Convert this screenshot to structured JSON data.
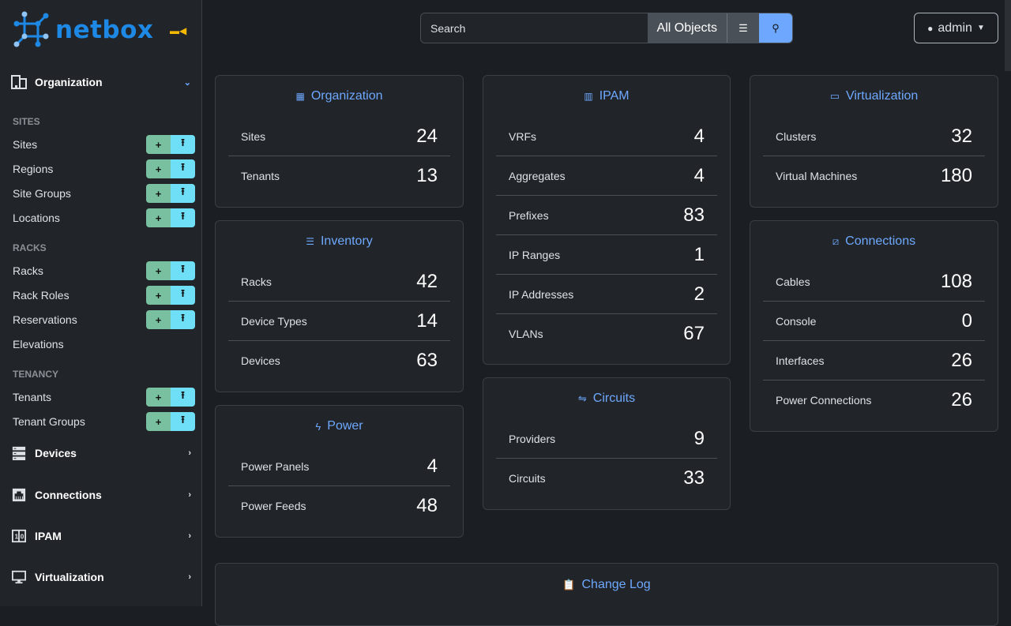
{
  "brand": {
    "name": "netbox"
  },
  "sidebar": {
    "organization": {
      "label": "Organization",
      "categories": [
        {
          "label": "SITES",
          "items": [
            {
              "label": "Sites",
              "buttons": true
            },
            {
              "label": "Regions",
              "buttons": true
            },
            {
              "label": "Site Groups",
              "buttons": true
            },
            {
              "label": "Locations",
              "buttons": true
            }
          ]
        },
        {
          "label": "RACKS",
          "items": [
            {
              "label": "Racks",
              "buttons": true
            },
            {
              "label": "Rack Roles",
              "buttons": true
            },
            {
              "label": "Reservations",
              "buttons": true
            },
            {
              "label": "Elevations",
              "buttons": false
            }
          ]
        },
        {
          "label": "TENANCY",
          "items": [
            {
              "label": "Tenants",
              "buttons": true
            },
            {
              "label": "Tenant Groups",
              "buttons": true
            }
          ]
        }
      ]
    },
    "sections": [
      {
        "label": "Devices"
      },
      {
        "label": "Connections"
      },
      {
        "label": "IPAM"
      },
      {
        "label": "Virtualization"
      }
    ],
    "add_icon": "+",
    "import_icon": "⭱"
  },
  "search": {
    "placeholder": "Search",
    "scope": "All Objects"
  },
  "user": {
    "name": "admin"
  },
  "cards": {
    "organization": {
      "title": "Organization",
      "rows": [
        {
          "label": "Sites",
          "count": "24"
        },
        {
          "label": "Tenants",
          "count": "13"
        }
      ]
    },
    "inventory": {
      "title": "Inventory",
      "rows": [
        {
          "label": "Racks",
          "count": "42"
        },
        {
          "label": "Device Types",
          "count": "14"
        },
        {
          "label": "Devices",
          "count": "63"
        }
      ]
    },
    "power": {
      "title": "Power",
      "rows": [
        {
          "label": "Power Panels",
          "count": "4"
        },
        {
          "label": "Power Feeds",
          "count": "48"
        }
      ]
    },
    "ipam": {
      "title": "IPAM",
      "rows": [
        {
          "label": "VRFs",
          "count": "4"
        },
        {
          "label": "Aggregates",
          "count": "4"
        },
        {
          "label": "Prefixes",
          "count": "83"
        },
        {
          "label": "IP Ranges",
          "count": "1"
        },
        {
          "label": "IP Addresses",
          "count": "2"
        },
        {
          "label": "VLANs",
          "count": "67"
        }
      ]
    },
    "circuits": {
      "title": "Circuits",
      "rows": [
        {
          "label": "Providers",
          "count": "9"
        },
        {
          "label": "Circuits",
          "count": "33"
        }
      ]
    },
    "virtualization": {
      "title": "Virtualization",
      "rows": [
        {
          "label": "Clusters",
          "count": "32"
        },
        {
          "label": "Virtual Machines",
          "count": "180"
        }
      ]
    },
    "connections": {
      "title": "Connections",
      "rows": [
        {
          "label": "Cables",
          "count": "108"
        },
        {
          "label": "Console",
          "count": "0"
        },
        {
          "label": "Interfaces",
          "count": "26"
        },
        {
          "label": "Power Connections",
          "count": "26"
        }
      ]
    },
    "changelog": {
      "title": "Change Log"
    }
  }
}
